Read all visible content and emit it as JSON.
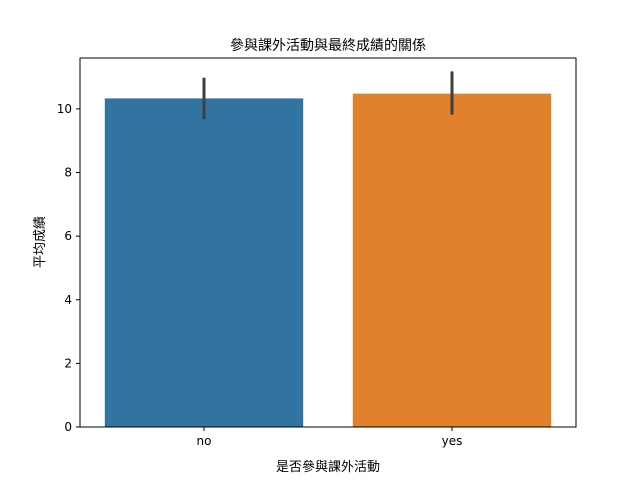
{
  "chart_data": {
    "type": "bar",
    "title": "參與課外活動與最終成績的關係",
    "xlabel": "是否參與課外活動",
    "ylabel": "平均成績",
    "categories": [
      "no",
      "yes"
    ],
    "values": [
      10.33,
      10.48
    ],
    "error_bars": [
      {
        "low": 9.68,
        "high": 10.98
      },
      {
        "low": 9.82,
        "high": 11.18
      }
    ],
    "colors": [
      "#3274a1",
      "#e1812c"
    ],
    "error_bar_color": "#3f3f3f",
    "ylim": [
      0,
      11.6
    ],
    "yticks": [
      0,
      2,
      4,
      6,
      8,
      10
    ],
    "grid": false
  }
}
